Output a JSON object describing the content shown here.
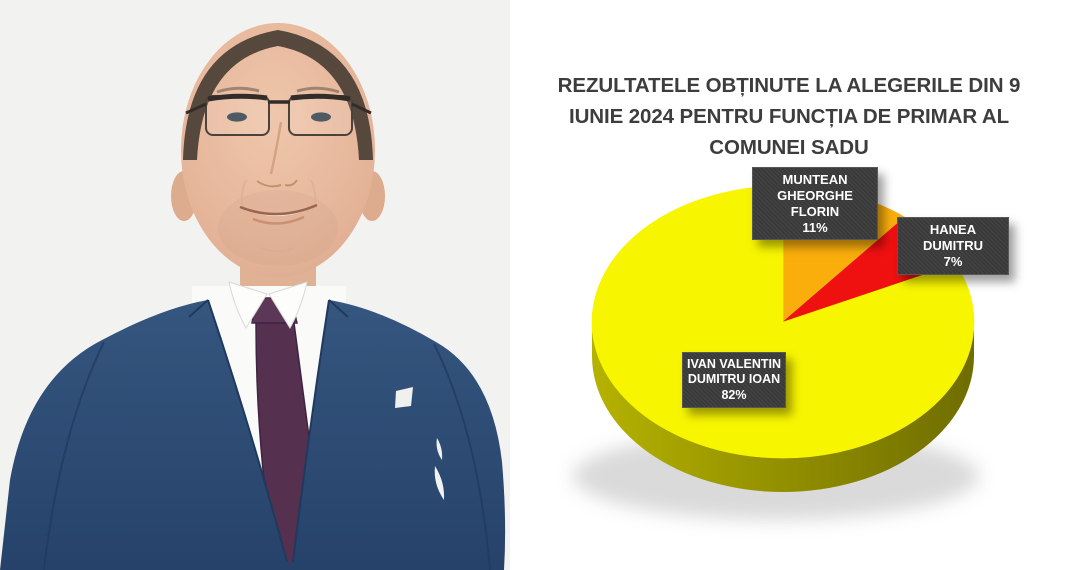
{
  "chart_data": {
    "type": "pie",
    "style": "3d",
    "title": "REZULTATELE OBȚINUTE LA ALEGERILE DIN 9 IUNIE 2024 PENTRU FUNCȚIA DE PRIMAR AL COMUNEI SADU",
    "title_lines": [
      "REZULTATELE OBȚINUTE LA ALEGERILE DIN 9",
      "IUNIE 2024 PENTRU FUNCȚIA DE PRIMAR AL",
      "COMUNEI SADU"
    ],
    "slices": [
      {
        "name": "IVAN VALENTIN DUMITRU IOAN",
        "name_line1": "IVAN VALENTIN",
        "name_line2": "DUMITRU IOAN",
        "value": 82,
        "pct_label": "82%",
        "color": "#F8F500"
      },
      {
        "name": "MUNTEAN GHEORGHE FLORIN",
        "name_line1": "MUNTEAN",
        "name_line2": "GHEORGHE FLORIN",
        "value": 11,
        "pct_label": "11%",
        "color": "#F9AE0C"
      },
      {
        "name": "HANEA DUMITRU",
        "name_line1": "HANEA DUMITRU",
        "name_line2": "",
        "value": 7,
        "pct_label": "7%",
        "color": "#EF1010"
      }
    ],
    "draw_order": [
      1,
      2,
      0
    ],
    "start_angle_deg": -90,
    "side_colors": [
      "#b5b200",
      "#6f6d00"
    ],
    "shadow_color": "#bcbcbc",
    "label_box_color": "#3a3a3a",
    "label_text_color": "#ffffff",
    "title_color": "#3d3d3d",
    "legend": "none"
  }
}
